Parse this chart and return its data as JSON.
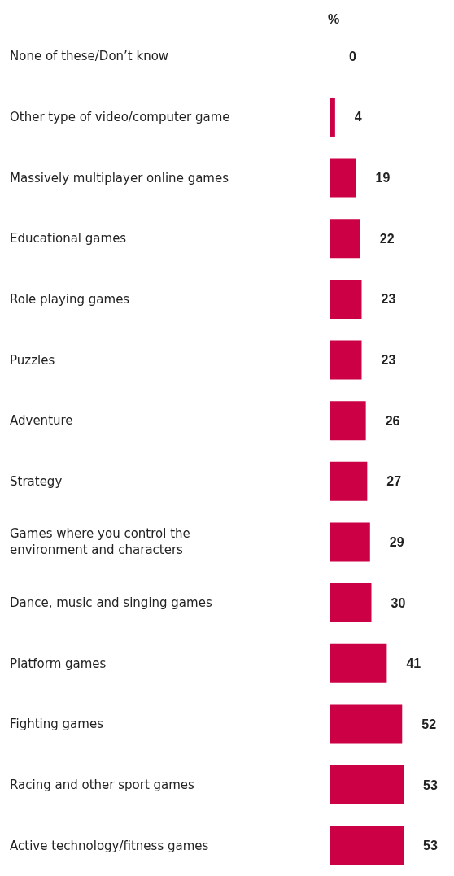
{
  "chart_data": {
    "type": "bar",
    "orientation": "horizontal",
    "title": "%",
    "categories": [
      "None of these/Don’t know",
      "Other type of video/computer game",
      "Massively multiplayer online games",
      "Educational games",
      "Role playing games",
      "Puzzles",
      "Adventure",
      "Strategy",
      "Games where you control the environment and characters",
      "Dance, music and singing games",
      "Platform games",
      "Fighting games",
      "Racing and other sport games",
      "Active technology/fitness games"
    ],
    "values": [
      0,
      4,
      19,
      22,
      23,
      23,
      26,
      27,
      29,
      30,
      41,
      52,
      53,
      53
    ],
    "color": "#cc0044",
    "data_labels": true
  }
}
